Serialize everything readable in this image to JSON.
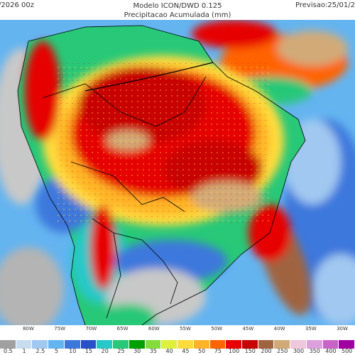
{
  "header": {
    "run_date": "/2026 00z",
    "model": "Modelo ICON/DWD 0.125",
    "product": "Precipitacao Acumulada (mm)",
    "forecast": "Previsao:25/01/2"
  },
  "longitudes": [
    "80W",
    "75W",
    "70W",
    "65W",
    "60W",
    "55W",
    "50W",
    "45W",
    "40W",
    "35W",
    "30W"
  ],
  "legend": {
    "labels": [
      "0.5",
      "1",
      "2.5",
      "5",
      "10",
      "15",
      "20",
      "25",
      "30",
      "35",
      "40",
      "45",
      "50",
      "75",
      "100",
      "150",
      "200",
      "250",
      "300",
      "350",
      "400",
      "500"
    ],
    "colors": [
      "#a0a0a0",
      "#c8dcf0",
      "#a0c8f0",
      "#64b4f0",
      "#3c78dc",
      "#2850c8",
      "#28c8c8",
      "#28c878",
      "#00a000",
      "#82dc3c",
      "#dcf03c",
      "#ffdc3c",
      "#ffb428",
      "#ff6400",
      "#e60000",
      "#c80000",
      "#a06440",
      "#d2aa78",
      "#f0c8dc",
      "#dca0dc",
      "#c864c8",
      "#a000a0"
    ]
  }
}
